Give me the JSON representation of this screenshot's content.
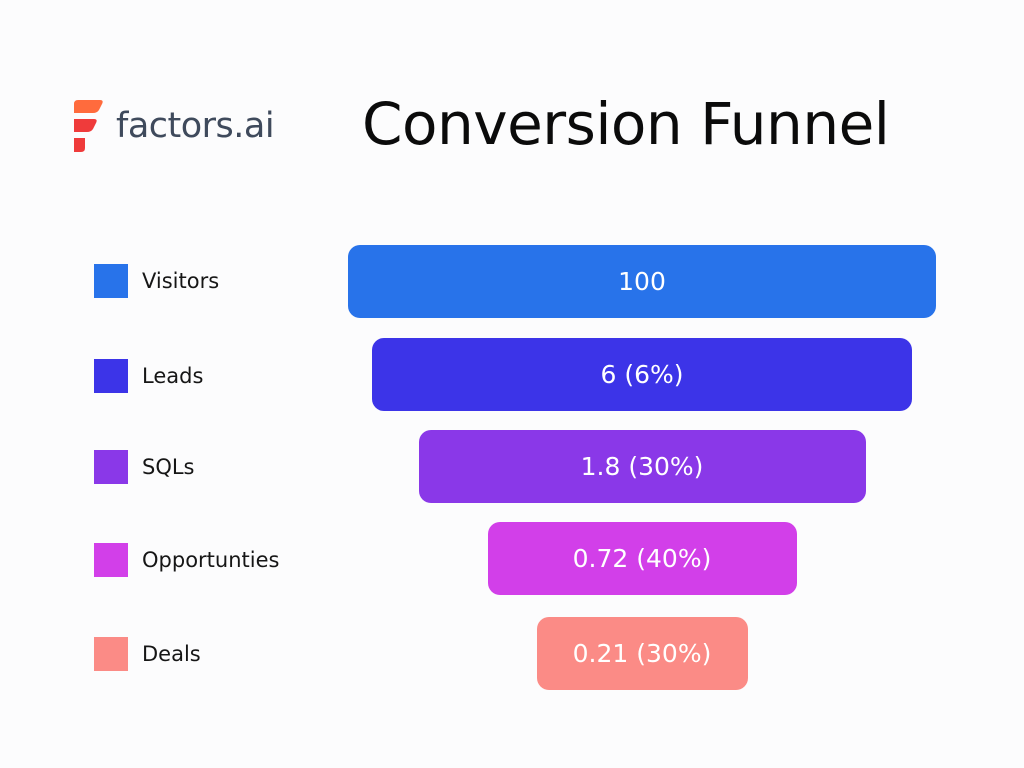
{
  "brand": {
    "name": "factors.ai",
    "logo_icon": "factors-logo-icon",
    "logo_colors": [
      "#ff6b3d",
      "#ef3b3b"
    ]
  },
  "chart_data": {
    "type": "funnel",
    "title": "Conversion Funnel",
    "stages": [
      {
        "name": "Visitors",
        "value": 100,
        "label": "100",
        "color": "#2873ea"
      },
      {
        "name": "Leads",
        "value": 6,
        "label": "6 (6%)",
        "color": "#3c34e8"
      },
      {
        "name": "SQLs",
        "value": 1.8,
        "label": "1.8 (30%)",
        "color": "#8a38e8"
      },
      {
        "name": "Opportunties",
        "value": 0.72,
        "label": "0.72 (40%)",
        "color": "#d23fe9"
      },
      {
        "name": "Deals",
        "value": 0.21,
        "label": "0.21 (30%)",
        "color": "#fb8b86"
      }
    ],
    "legend_position": "left"
  }
}
